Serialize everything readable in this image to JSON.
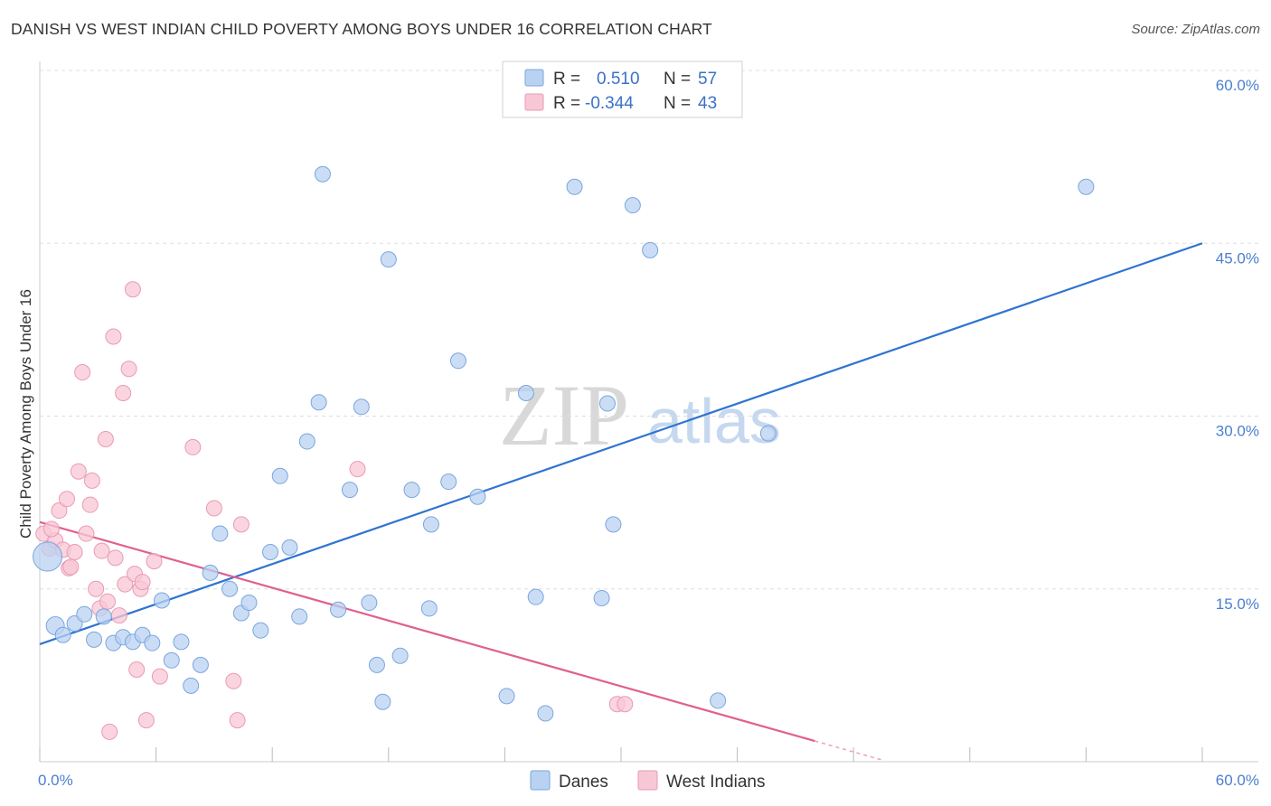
{
  "title": "DANISH VS WEST INDIAN CHILD POVERTY AMONG BOYS UNDER 16 CORRELATION CHART",
  "source": "Source: ZipAtlas.com",
  "watermark": {
    "zip": "ZIP",
    "atlas": "atlas"
  },
  "colors": {
    "danes_fill": "#b9d2f1",
    "danes_stroke": "#7aa6de",
    "danes_line": "#2f74d0",
    "wi_fill": "#f8c7d6",
    "wi_stroke": "#e99ab4",
    "wi_line": "#e0608e",
    "tick_label": "#4a7fd0",
    "grid": "#dddddd"
  },
  "legend": {
    "rows": [
      {
        "r_label": "R =",
        "r_value": "0.510",
        "n_label": "N =",
        "n_value": "57"
      },
      {
        "r_label": "R =",
        "r_value": "-0.344",
        "n_label": "N =",
        "n_value": "43"
      }
    ]
  },
  "chart_data": {
    "type": "scatter",
    "title": "DANISH VS WEST INDIAN CHILD POVERTY AMONG BOYS UNDER 16 CORRELATION CHART",
    "xlabel": "",
    "ylabel": "Child Poverty Among Boys Under 16",
    "xlim": [
      0,
      60
    ],
    "ylim": [
      0,
      60
    ],
    "x_tick_labels": [
      "0.0%",
      "60.0%"
    ],
    "y_tick_labels": [
      "15.0%",
      "30.0%",
      "45.0%",
      "60.0%"
    ],
    "y_ticks": [
      15,
      30,
      45,
      60
    ],
    "grid": true,
    "legend_position": "bottom",
    "series": [
      {
        "name": "Danes",
        "R": 0.51,
        "N": 57,
        "trend": {
          "x": [
            0,
            60
          ],
          "y": [
            10.2,
            45.0
          ]
        },
        "points": [
          [
            0.4,
            17.8
          ],
          [
            0.8,
            11.8
          ],
          [
            1.2,
            11.0
          ],
          [
            1.8,
            12.0
          ],
          [
            2.3,
            12.8
          ],
          [
            2.8,
            10.6
          ],
          [
            3.3,
            12.6
          ],
          [
            3.8,
            10.3
          ],
          [
            4.3,
            10.8
          ],
          [
            4.8,
            10.4
          ],
          [
            5.3,
            11.0
          ],
          [
            5.8,
            10.3
          ],
          [
            6.3,
            14.0
          ],
          [
            6.8,
            8.8
          ],
          [
            7.3,
            10.4
          ],
          [
            7.8,
            6.6
          ],
          [
            8.3,
            8.4
          ],
          [
            8.8,
            16.4
          ],
          [
            9.3,
            19.8
          ],
          [
            9.8,
            15.0
          ],
          [
            10.4,
            12.9
          ],
          [
            10.8,
            13.8
          ],
          [
            11.4,
            11.4
          ],
          [
            11.9,
            18.2
          ],
          [
            12.4,
            24.8
          ],
          [
            12.9,
            18.6
          ],
          [
            13.4,
            12.6
          ],
          [
            13.8,
            27.8
          ],
          [
            14.4,
            31.2
          ],
          [
            14.6,
            51.0
          ],
          [
            15.4,
            13.2
          ],
          [
            16.0,
            23.6
          ],
          [
            16.6,
            30.8
          ],
          [
            17.0,
            13.8
          ],
          [
            17.4,
            8.4
          ],
          [
            17.7,
            5.2
          ],
          [
            18.0,
            43.6
          ],
          [
            18.6,
            9.2
          ],
          [
            19.2,
            23.6
          ],
          [
            20.1,
            13.3
          ],
          [
            20.2,
            20.6
          ],
          [
            21.1,
            24.3
          ],
          [
            21.6,
            34.8
          ],
          [
            22.6,
            23.0
          ],
          [
            24.1,
            5.7
          ],
          [
            25.1,
            32.0
          ],
          [
            25.6,
            14.3
          ],
          [
            26.1,
            4.2
          ],
          [
            27.6,
            49.9
          ],
          [
            29.0,
            14.2
          ],
          [
            29.3,
            31.1
          ],
          [
            29.6,
            20.6
          ],
          [
            30.6,
            48.3
          ],
          [
            31.5,
            44.4
          ],
          [
            35.0,
            5.3
          ],
          [
            37.6,
            28.5
          ],
          [
            54.0,
            49.9
          ]
        ]
      },
      {
        "name": "West Indians",
        "R": -0.344,
        "N": 43,
        "trend": {
          "x": [
            0,
            40
          ],
          "y": [
            20.8,
            1.8
          ]
        },
        "points": [
          [
            0.2,
            19.8
          ],
          [
            0.5,
            18.5
          ],
          [
            0.8,
            19.2
          ],
          [
            1.0,
            21.8
          ],
          [
            1.2,
            18.4
          ],
          [
            1.4,
            22.8
          ],
          [
            1.5,
            16.8
          ],
          [
            1.8,
            18.2
          ],
          [
            2.0,
            25.2
          ],
          [
            2.2,
            33.8
          ],
          [
            2.4,
            19.8
          ],
          [
            2.6,
            22.3
          ],
          [
            2.7,
            24.4
          ],
          [
            2.9,
            15.0
          ],
          [
            3.1,
            13.3
          ],
          [
            3.2,
            18.3
          ],
          [
            3.4,
            28.0
          ],
          [
            3.5,
            13.9
          ],
          [
            3.6,
            2.6
          ],
          [
            3.8,
            36.9
          ],
          [
            3.9,
            17.7
          ],
          [
            4.1,
            12.7
          ],
          [
            4.3,
            32.0
          ],
          [
            4.4,
            15.4
          ],
          [
            4.6,
            34.1
          ],
          [
            4.8,
            41.0
          ],
          [
            4.9,
            16.3
          ],
          [
            5.0,
            8.0
          ],
          [
            5.2,
            15.0
          ],
          [
            5.3,
            15.6
          ],
          [
            5.5,
            3.6
          ],
          [
            5.9,
            17.4
          ],
          [
            6.2,
            7.4
          ],
          [
            7.9,
            27.3
          ],
          [
            9.0,
            22.0
          ],
          [
            10.0,
            7.0
          ],
          [
            10.2,
            3.6
          ],
          [
            10.4,
            20.6
          ],
          [
            16.4,
            25.4
          ],
          [
            29.8,
            5.0
          ],
          [
            30.2,
            5.0
          ],
          [
            0.6,
            20.2
          ],
          [
            1.6,
            16.9
          ]
        ]
      }
    ]
  },
  "bottom_legend": [
    {
      "label": "Danes"
    },
    {
      "label": "West Indians"
    }
  ]
}
